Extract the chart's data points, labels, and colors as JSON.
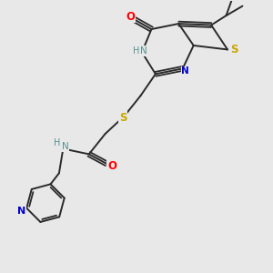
{
  "background_color": "#e8e8e8",
  "bond_color": "#2a2a2a",
  "atom_colors": {
    "O": "#ff0000",
    "NH": "#5a9090",
    "N": "#0000cc",
    "S": "#c8a800",
    "H_color": "#5a9090"
  },
  "figsize": [
    3.0,
    3.0
  ],
  "dpi": 100
}
